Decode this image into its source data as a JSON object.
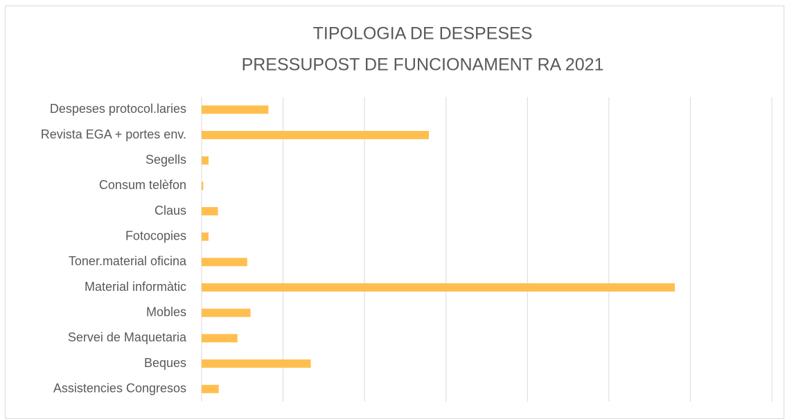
{
  "chart_data": {
    "type": "bar",
    "orientation": "horizontal",
    "title": "TIPOLOGIA DE DESPESES",
    "subtitle": "PRESSUPOST DE FUNCIONAMENT RA 2021",
    "categories": [
      "Despeses protocol.laries",
      "Revista EGA + portes env.",
      "Segells",
      "Consum telèfon",
      "Claus",
      "Fotocopies",
      "Toner.material oficina",
      "Material informàtic",
      "Mobles",
      "Servei de Maquetaria",
      "Beques",
      "Assistencies Congresos"
    ],
    "values": [
      0.82,
      2.79,
      0.085,
      0.02,
      0.2,
      0.085,
      0.56,
      5.81,
      0.6,
      0.44,
      1.34,
      0.21
    ],
    "color": "#ffbf4f",
    "xlim": [
      0,
      7
    ],
    "xticks": [
      0,
      1,
      2,
      3,
      4,
      5,
      6,
      7
    ],
    "grid": true
  }
}
